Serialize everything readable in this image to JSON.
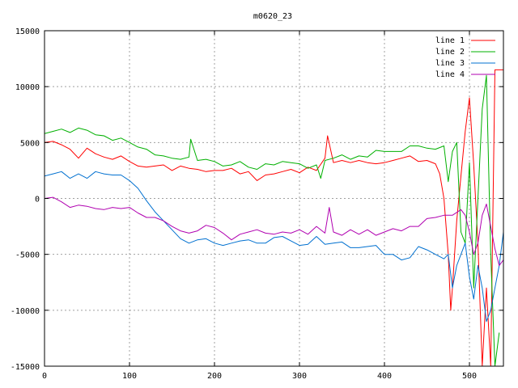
{
  "chart_data": {
    "type": "line",
    "title": "m0620_23",
    "xlabel": "",
    "ylabel": "",
    "xlim": [
      0,
      540
    ],
    "ylim": [
      -15000,
      15000
    ],
    "x_ticks": [
      0,
      100,
      200,
      300,
      400,
      500
    ],
    "y_ticks": [
      -15000,
      -10000,
      -5000,
      0,
      5000,
      10000,
      15000
    ],
    "x_tick_labels": [
      "0",
      "100",
      "200",
      "300",
      "400",
      "500"
    ],
    "y_tick_labels": [
      "-15000",
      "-10000",
      "-5000",
      "0",
      "5000",
      "10000",
      "15000"
    ],
    "grid": true,
    "legend_position": "top-right",
    "series": [
      {
        "name": "line 1",
        "color": "#ff0000",
        "x": [
          0,
          10,
          20,
          30,
          40,
          50,
          60,
          70,
          80,
          90,
          100,
          110,
          120,
          130,
          140,
          150,
          160,
          170,
          180,
          190,
          200,
          210,
          220,
          230,
          240,
          250,
          260,
          270,
          280,
          290,
          300,
          310,
          320,
          330,
          333,
          340,
          350,
          360,
          370,
          380,
          390,
          400,
          410,
          420,
          430,
          440,
          450,
          460,
          465,
          470,
          475,
          478,
          480,
          485,
          490,
          495,
          500,
          505,
          510,
          515,
          520,
          525,
          530,
          540
        ],
        "y": [
          5000,
          5100,
          4800,
          4400,
          3600,
          4500,
          4000,
          3700,
          3500,
          3800,
          3300,
          2900,
          2800,
          2900,
          3000,
          2500,
          2900,
          2700,
          2600,
          2400,
          2500,
          2500,
          2700,
          2200,
          2400,
          1600,
          2100,
          2200,
          2400,
          2600,
          2300,
          2800,
          2500,
          3600,
          5600,
          3200,
          3400,
          3200,
          3400,
          3200,
          3100,
          3200,
          3400,
          3600,
          3800,
          3300,
          3400,
          3100,
          2200,
          0,
          -5000,
          -10000,
          -8000,
          -2000,
          2000,
          6000,
          9000,
          3000,
          -4000,
          -15000,
          -8000,
          -15000,
          11500,
          11500
        ]
      },
      {
        "name": "line 2",
        "color": "#00b000",
        "x": [
          0,
          10,
          20,
          30,
          40,
          50,
          60,
          70,
          80,
          90,
          100,
          110,
          120,
          130,
          140,
          150,
          160,
          170,
          172,
          180,
          190,
          200,
          210,
          220,
          230,
          240,
          250,
          260,
          270,
          280,
          290,
          300,
          310,
          320,
          325,
          330,
          340,
          350,
          360,
          370,
          380,
          390,
          400,
          410,
          420,
          430,
          440,
          450,
          460,
          470,
          475,
          480,
          485,
          490,
          495,
          500,
          505,
          510,
          515,
          520,
          525,
          530,
          535
        ],
        "y": [
          5800,
          6000,
          6200,
          5900,
          6300,
          6100,
          5700,
          5600,
          5200,
          5400,
          5000,
          4600,
          4400,
          3900,
          3800,
          3600,
          3500,
          3700,
          5300,
          3400,
          3500,
          3300,
          2900,
          3000,
          3300,
          2800,
          2600,
          3100,
          3000,
          3300,
          3200,
          3100,
          2700,
          3000,
          1800,
          3400,
          3600,
          3900,
          3500,
          3800,
          3700,
          4300,
          4200,
          4200,
          4200,
          4700,
          4700,
          4500,
          4400,
          4700,
          1500,
          4200,
          5000,
          -3000,
          -4000,
          3200,
          -8000,
          0,
          8000,
          11000,
          -5000,
          -15000,
          -12000
        ]
      },
      {
        "name": "line 3",
        "color": "#0070d0",
        "x": [
          0,
          10,
          20,
          30,
          40,
          50,
          60,
          70,
          80,
          90,
          100,
          110,
          120,
          130,
          140,
          150,
          160,
          170,
          180,
          190,
          200,
          210,
          220,
          230,
          240,
          250,
          260,
          270,
          280,
          290,
          300,
          310,
          320,
          330,
          340,
          350,
          360,
          370,
          380,
          390,
          400,
          410,
          420,
          430,
          440,
          450,
          460,
          470,
          475,
          480,
          485,
          490,
          495,
          500,
          505,
          510,
          515,
          520,
          525,
          530,
          535,
          540
        ],
        "y": [
          2000,
          2200,
          2400,
          1800,
          2200,
          1800,
          2400,
          2200,
          2100,
          2100,
          1600,
          900,
          -200,
          -1200,
          -2000,
          -2800,
          -3600,
          -4000,
          -3700,
          -3600,
          -4000,
          -4200,
          -4000,
          -3800,
          -3700,
          -4000,
          -4000,
          -3500,
          -3400,
          -3800,
          -4200,
          -4100,
          -3400,
          -4100,
          -4000,
          -3900,
          -4400,
          -4400,
          -4300,
          -4200,
          -5000,
          -5000,
          -5500,
          -5300,
          -4300,
          -4600,
          -5000,
          -5400,
          -5000,
          -8000,
          -6000,
          -5000,
          -4000,
          -7000,
          -9000,
          -6000,
          -8000,
          -11000,
          -10000,
          -8000,
          -6000,
          -3000
        ]
      },
      {
        "name": "line 4",
        "color": "#b000b0",
        "x": [
          0,
          10,
          20,
          30,
          40,
          50,
          60,
          70,
          80,
          90,
          100,
          110,
          120,
          130,
          140,
          150,
          160,
          170,
          180,
          190,
          200,
          210,
          220,
          230,
          240,
          250,
          260,
          270,
          280,
          290,
          300,
          310,
          320,
          330,
          335,
          340,
          350,
          360,
          370,
          380,
          390,
          400,
          410,
          420,
          430,
          440,
          450,
          460,
          470,
          480,
          490,
          495,
          500,
          505,
          510,
          515,
          520,
          525,
          530,
          535,
          540
        ],
        "y": [
          0,
          100,
          -300,
          -800,
          -600,
          -700,
          -900,
          -1000,
          -800,
          -900,
          -800,
          -1300,
          -1700,
          -1700,
          -2000,
          -2500,
          -2900,
          -3100,
          -2900,
          -2400,
          -2600,
          -3100,
          -3700,
          -3200,
          -3000,
          -2800,
          -3100,
          -3200,
          -3000,
          -3100,
          -2800,
          -3200,
          -2500,
          -3100,
          -800,
          -3000,
          -3300,
          -2800,
          -3200,
          -2800,
          -3300,
          -3000,
          -2700,
          -2900,
          -2500,
          -2500,
          -1800,
          -1700,
          -1500,
          -1500,
          -1000,
          -1500,
          -3000,
          -5000,
          -4000,
          -1500,
          -500,
          -2500,
          -4500,
          -6000,
          -5500
        ]
      }
    ]
  }
}
